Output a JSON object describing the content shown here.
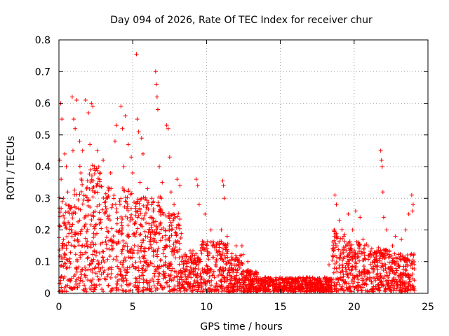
{
  "chart_data": {
    "type": "scatter",
    "title": "Day 094 of 2026, Rate Of TEC Index for receiver chur",
    "xlabel": "GPS time / hours",
    "ylabel": "ROTI / TECUs",
    "xlim": [
      0,
      25
    ],
    "ylim": [
      0,
      0.8
    ],
    "x_ticks": [
      0,
      5,
      10,
      15,
      20,
      25
    ],
    "y_ticks": [
      0,
      0.1,
      0.2,
      0.3,
      0.4,
      0.5,
      0.6,
      0.7,
      0.8
    ],
    "x_tick_labels": [
      "0",
      "5",
      "10",
      "15",
      "20",
      "25"
    ],
    "y_tick_labels": [
      "0",
      "0.1",
      "0.2",
      "0.3",
      "0.4",
      "0.5",
      "0.6",
      "0.7",
      "0.8"
    ],
    "grid": true,
    "marker": "+",
    "marker_color": "#ff0000",
    "series": [
      {
        "points": [
          [
            0.05,
            0.42
          ],
          [
            0.12,
            0.6
          ],
          [
            0.2,
            0.55
          ],
          [
            0.15,
            0.36
          ],
          [
            0.3,
            0.3
          ],
          [
            0.4,
            0.44
          ],
          [
            0.5,
            0.4
          ],
          [
            0.6,
            0.32
          ],
          [
            0.9,
            0.62
          ],
          [
            1.0,
            0.55
          ],
          [
            1.1,
            0.52
          ],
          [
            0.95,
            0.45
          ],
          [
            1.2,
            0.61
          ],
          [
            1.4,
            0.48
          ],
          [
            1.6,
            0.45
          ],
          [
            1.8,
            0.61
          ],
          [
            2.0,
            0.57
          ],
          [
            2.2,
            0.6
          ],
          [
            2.3,
            0.59
          ],
          [
            2.1,
            0.47
          ],
          [
            2.4,
            0.4
          ],
          [
            2.6,
            0.45
          ],
          [
            2.8,
            0.38
          ],
          [
            3.0,
            0.42
          ],
          [
            3.2,
            0.3
          ],
          [
            3.5,
            0.38
          ],
          [
            3.8,
            0.48
          ],
          [
            3.9,
            0.53
          ],
          [
            4.2,
            0.59
          ],
          [
            4.3,
            0.52
          ],
          [
            4.5,
            0.56
          ],
          [
            4.4,
            0.4
          ],
          [
            4.7,
            0.47
          ],
          [
            4.9,
            0.43
          ],
          [
            5.0,
            0.38
          ],
          [
            5.25,
            0.755
          ],
          [
            5.3,
            0.55
          ],
          [
            5.4,
            0.51
          ],
          [
            5.6,
            0.49
          ],
          [
            5.7,
            0.44
          ],
          [
            5.5,
            0.35
          ],
          [
            6.0,
            0.33
          ],
          [
            6.3,
            0.3
          ],
          [
            6.55,
            0.7
          ],
          [
            6.6,
            0.66
          ],
          [
            6.65,
            0.62
          ],
          [
            6.7,
            0.58
          ],
          [
            6.8,
            0.4
          ],
          [
            7.0,
            0.35
          ],
          [
            7.3,
            0.53
          ],
          [
            7.4,
            0.52
          ],
          [
            7.5,
            0.43
          ],
          [
            7.6,
            0.32
          ],
          [
            7.8,
            0.28
          ],
          [
            8.0,
            0.36
          ],
          [
            8.2,
            0.34
          ],
          [
            9.3,
            0.36
          ],
          [
            9.4,
            0.34
          ],
          [
            9.5,
            0.28
          ],
          [
            9.9,
            0.25
          ],
          [
            10.3,
            0.2
          ],
          [
            11.1,
            0.355
          ],
          [
            11.15,
            0.34
          ],
          [
            11.2,
            0.3
          ],
          [
            11.0,
            0.2
          ],
          [
            11.4,
            0.18
          ],
          [
            12.0,
            0.15
          ],
          [
            12.4,
            0.15
          ],
          [
            12.8,
            0.1
          ],
          [
            13.4,
            0.06
          ],
          [
            14.0,
            0.05
          ],
          [
            14.5,
            0.04
          ],
          [
            15.0,
            0.03
          ],
          [
            15.5,
            0.03
          ],
          [
            16.0,
            0.04
          ],
          [
            16.5,
            0.03
          ],
          [
            17.0,
            0.05
          ],
          [
            17.5,
            0.04
          ],
          [
            18.0,
            0.05
          ],
          [
            18.3,
            0.09
          ],
          [
            18.7,
            0.31
          ],
          [
            18.8,
            0.28
          ],
          [
            19.0,
            0.23
          ],
          [
            19.3,
            0.18
          ],
          [
            19.6,
            0.25
          ],
          [
            19.9,
            0.2
          ],
          [
            20.1,
            0.26
          ],
          [
            20.4,
            0.24
          ],
          [
            20.6,
            0.17
          ],
          [
            21.0,
            0.12
          ],
          [
            21.4,
            0.1
          ],
          [
            21.8,
            0.45
          ],
          [
            21.85,
            0.42
          ],
          [
            21.9,
            0.4
          ],
          [
            21.95,
            0.32
          ],
          [
            22.0,
            0.24
          ],
          [
            22.2,
            0.2
          ],
          [
            22.6,
            0.15
          ],
          [
            22.8,
            0.18
          ],
          [
            23.2,
            0.17
          ],
          [
            23.5,
            0.2
          ],
          [
            23.7,
            0.25
          ],
          [
            23.9,
            0.31
          ],
          [
            23.95,
            0.26
          ],
          [
            24.0,
            0.28
          ]
        ]
      }
    ]
  }
}
